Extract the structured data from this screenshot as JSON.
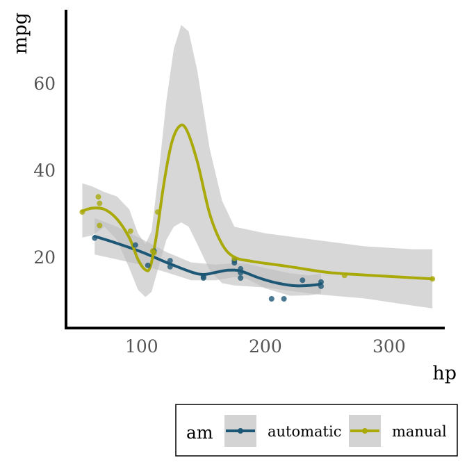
{
  "chart_data": {
    "type": "scatter",
    "xlabel": "hp",
    "ylabel": "mpg",
    "xlim": [
      40,
      345
    ],
    "ylim": [
      4,
      77
    ],
    "x_ticks": [
      100,
      200,
      300
    ],
    "y_ticks": [
      20,
      40,
      60
    ],
    "grid": false,
    "legend": {
      "title": "am",
      "placement": "bottom-right",
      "entries": [
        "automatic",
        "manual"
      ]
    },
    "series": [
      {
        "name": "automatic",
        "color": "#1d5776",
        "points": [
          [
            62,
            24.4
          ],
          [
            95,
            22.8
          ],
          [
            105,
            18.1
          ],
          [
            110,
            21.4
          ],
          [
            123,
            19.2
          ],
          [
            123,
            17.8
          ],
          [
            150,
            15.5
          ],
          [
            150,
            15.2
          ],
          [
            175,
            18.7
          ],
          [
            175,
            19.2
          ],
          [
            180,
            16.4
          ],
          [
            180,
            17.3
          ],
          [
            180,
            15.2
          ],
          [
            205,
            10.4
          ],
          [
            215,
            10.4
          ],
          [
            230,
            14.7
          ],
          [
            245,
            14.3
          ],
          [
            245,
            13.3
          ]
        ],
        "smooth": [
          [
            62,
            24.8
          ],
          [
            80,
            23.2
          ],
          [
            100,
            21.2
          ],
          [
            120,
            18.8
          ],
          [
            140,
            16.6
          ],
          [
            150,
            16.0
          ],
          [
            160,
            16.5
          ],
          [
            170,
            17.0
          ],
          [
            180,
            16.8
          ],
          [
            195,
            15.2
          ],
          [
            210,
            14.0
          ],
          [
            225,
            13.4
          ],
          [
            240,
            13.6
          ],
          [
            245,
            13.9
          ]
        ],
        "band_upper": [
          [
            62,
            29.0
          ],
          [
            80,
            27.0
          ],
          [
            100,
            24.2
          ],
          [
            120,
            21.2
          ],
          [
            140,
            18.8
          ],
          [
            160,
            18.3
          ],
          [
            175,
            18.6
          ],
          [
            185,
            18.5
          ],
          [
            200,
            17.5
          ],
          [
            220,
            16.3
          ],
          [
            235,
            15.8
          ],
          [
            245,
            16.2
          ]
        ],
        "band_lower": [
          [
            62,
            20.6
          ],
          [
            80,
            19.5
          ],
          [
            100,
            18.2
          ],
          [
            120,
            16.5
          ],
          [
            140,
            14.7
          ],
          [
            160,
            14.7
          ],
          [
            175,
            15.4
          ],
          [
            185,
            15.0
          ],
          [
            200,
            12.8
          ],
          [
            220,
            11.1
          ],
          [
            235,
            11.2
          ],
          [
            245,
            11.6
          ]
        ]
      },
      {
        "name": "manual",
        "color": "#a9a90a",
        "points": [
          [
            52,
            30.4
          ],
          [
            65,
            33.9
          ],
          [
            66,
            32.4
          ],
          [
            66,
            27.3
          ],
          [
            91,
            26.0
          ],
          [
            109,
            21.4
          ],
          [
            110,
            21.0
          ],
          [
            113,
            30.4
          ],
          [
            264,
            15.8
          ],
          [
            175,
            19.7
          ],
          [
            335,
            15.0
          ]
        ],
        "smooth": [
          [
            52,
            30.6
          ],
          [
            60,
            31.3
          ],
          [
            70,
            31.0
          ],
          [
            80,
            28.8
          ],
          [
            90,
            24.5
          ],
          [
            97,
            19.5
          ],
          [
            103,
            17.1
          ],
          [
            107,
            17.8
          ],
          [
            112,
            25.0
          ],
          [
            118,
            37.0
          ],
          [
            124,
            46.0
          ],
          [
            130,
            50.0
          ],
          [
            136,
            49.5
          ],
          [
            145,
            42.0
          ],
          [
            155,
            30.0
          ],
          [
            165,
            23.0
          ],
          [
            175,
            20.0
          ],
          [
            190,
            19.0
          ],
          [
            220,
            17.8
          ],
          [
            250,
            16.5
          ],
          [
            280,
            15.9
          ],
          [
            310,
            15.4
          ],
          [
            335,
            15.0
          ]
        ],
        "band_upper": [
          [
            52,
            37.0
          ],
          [
            60,
            36.3
          ],
          [
            70,
            35.0
          ],
          [
            80,
            34.0
          ],
          [
            90,
            31.0
          ],
          [
            97,
            25.5
          ],
          [
            103,
            23.0
          ],
          [
            108,
            26.0
          ],
          [
            114,
            40.0
          ],
          [
            120,
            56.0
          ],
          [
            126,
            68.0
          ],
          [
            132,
            73.5
          ],
          [
            138,
            72.0
          ],
          [
            145,
            63.0
          ],
          [
            155,
            45.0
          ],
          [
            165,
            33.0
          ],
          [
            175,
            27.0
          ],
          [
            200,
            25.5
          ],
          [
            240,
            24.0
          ],
          [
            280,
            22.5
          ],
          [
            320,
            21.8
          ],
          [
            335,
            21.8
          ]
        ],
        "band_lower": [
          [
            52,
            24.5
          ],
          [
            60,
            25.0
          ],
          [
            70,
            27.0
          ],
          [
            80,
            24.0
          ],
          [
            90,
            17.5
          ],
          [
            97,
            12.5
          ],
          [
            103,
            10.8
          ],
          [
            108,
            12.0
          ],
          [
            114,
            18.0
          ],
          [
            120,
            24.0
          ],
          [
            126,
            27.0
          ],
          [
            132,
            28.0
          ],
          [
            138,
            27.0
          ],
          [
            145,
            23.0
          ],
          [
            155,
            17.0
          ],
          [
            165,
            14.0
          ],
          [
            175,
            13.5
          ],
          [
            200,
            13.0
          ],
          [
            240,
            11.5
          ],
          [
            280,
            10.5
          ],
          [
            320,
            8.8
          ],
          [
            335,
            8.2
          ]
        ]
      }
    ]
  }
}
